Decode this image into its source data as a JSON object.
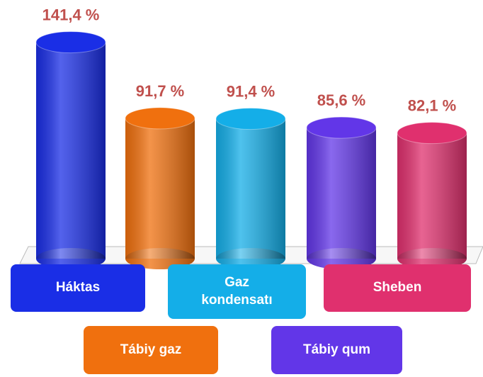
{
  "chart_data": {
    "type": "cylinder",
    "categories": [
      "Háktas",
      "Tábiy gaz",
      "Gaz kondensatı",
      "Tábiy qum",
      "Sheben"
    ],
    "values": [
      141.4,
      91.7,
      91.4,
      85.6,
      82.1
    ],
    "value_labels": [
      "141,4 %",
      "91,7 %",
      "91,4 %",
      "85,6 %",
      "82,1 %"
    ],
    "colors": [
      "#1a2ee6",
      "#f0700e",
      "#14aee8",
      "#6236e8",
      "#e0306e"
    ]
  }
}
